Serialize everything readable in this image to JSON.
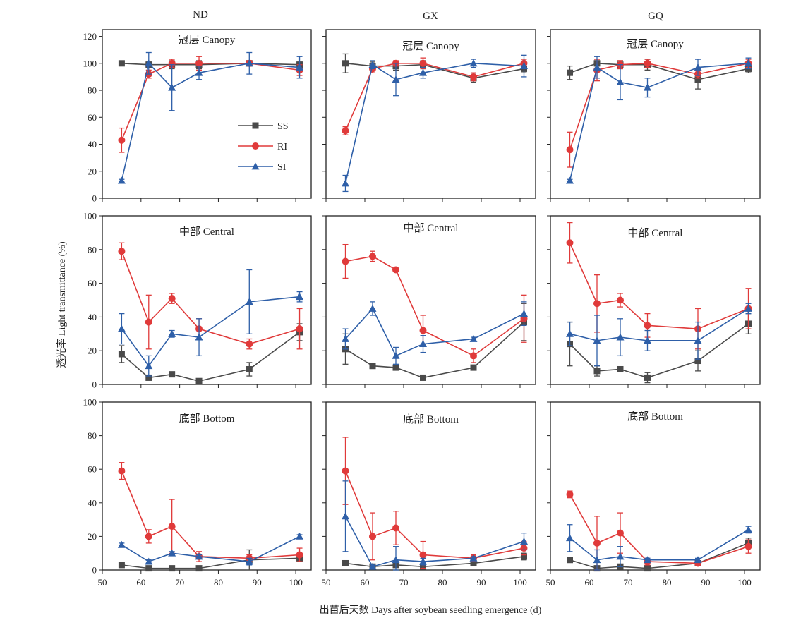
{
  "figure": {
    "xlabel": "出苗后天数 Days after soybean seedling emergence (d)",
    "ylabel": "透光率 Light transmittance (%)",
    "columns": [
      "ND",
      "GX",
      "GQ"
    ],
    "rows": [
      "冠层 Canopy",
      "中部 Central",
      "底部 Bottom"
    ],
    "x_ticks": [
      50,
      60,
      70,
      80,
      90,
      100
    ],
    "xlim": [
      50,
      104
    ],
    "row_ylims": [
      [
        0,
        125
      ],
      [
        0,
        100
      ],
      [
        0,
        100
      ]
    ],
    "row_yticks": [
      [
        0,
        20,
        40,
        60,
        80,
        100,
        120
      ],
      [
        0,
        20,
        40,
        60,
        80,
        100
      ],
      [
        0,
        20,
        40,
        60,
        80,
        100
      ]
    ],
    "legend": {
      "placement": "inside top-left panel, right of center",
      "items": [
        "SS",
        "RI",
        "SI"
      ]
    },
    "colors": {
      "SS": "#4a4a4a",
      "RI": "#e03a3a",
      "SI": "#2e5fa8"
    }
  },
  "chart_data": [
    {
      "type": "line",
      "column": "ND",
      "row": "冠层 Canopy",
      "title": "冠层 Canopy",
      "x": [
        55,
        62,
        68,
        75,
        88,
        101
      ],
      "series": [
        {
          "name": "SS",
          "values": [
            100,
            99,
            99,
            99,
            100,
            99
          ],
          "errors": [
            1,
            2,
            3,
            3,
            2,
            2
          ]
        },
        {
          "name": "RI",
          "values": [
            43,
            92,
            100,
            100,
            100,
            95
          ],
          "errors": [
            9,
            3,
            3,
            5,
            2,
            4
          ]
        },
        {
          "name": "SI",
          "values": [
            13,
            100,
            82,
            93,
            100,
            97
          ],
          "errors": [
            1,
            8,
            17,
            5,
            8,
            8
          ]
        }
      ]
    },
    {
      "type": "line",
      "column": "GX",
      "row": "冠层 Canopy",
      "title": "冠层 Canopy",
      "x": [
        55,
        62,
        68,
        75,
        88,
        101
      ],
      "series": [
        {
          "name": "SS",
          "values": [
            100,
            98,
            98,
            99,
            89,
            96
          ],
          "errors": [
            7,
            3,
            3,
            3,
            3,
            3
          ]
        },
        {
          "name": "RI",
          "values": [
            50,
            96,
            100,
            100,
            90,
            100
          ],
          "errors": [
            3,
            3,
            2,
            4,
            3,
            3
          ]
        },
        {
          "name": "SI",
          "values": [
            11,
            99,
            88,
            93,
            100,
            98
          ],
          "errors": [
            6,
            3,
            12,
            4,
            3,
            8
          ]
        }
      ]
    },
    {
      "type": "line",
      "column": "GQ",
      "row": "冠层 Canopy",
      "title": "冠层 Canopy",
      "x": [
        55,
        62,
        68,
        75,
        88,
        101
      ],
      "series": [
        {
          "name": "SS",
          "values": [
            93,
            100,
            99,
            99,
            88,
            96
          ],
          "errors": [
            5,
            2,
            3,
            4,
            7,
            3
          ]
        },
        {
          "name": "RI",
          "values": [
            36,
            95,
            99,
            100,
            92,
            100
          ],
          "errors": [
            13,
            8,
            3,
            3,
            3,
            3
          ]
        },
        {
          "name": "SI",
          "values": [
            13,
            97,
            86,
            82,
            97,
            100
          ],
          "errors": [
            1,
            8,
            13,
            7,
            6,
            4
          ]
        }
      ]
    },
    {
      "type": "line",
      "column": "ND",
      "row": "中部 Central",
      "title": "中部 Central",
      "x": [
        55,
        62,
        68,
        75,
        88,
        101
      ],
      "series": [
        {
          "name": "SS",
          "values": [
            18,
            4,
            6,
            2,
            9,
            31
          ],
          "errors": [
            5,
            1,
            1,
            1,
            4,
            5
          ]
        },
        {
          "name": "RI",
          "values": [
            79,
            37,
            51,
            33,
            24,
            33
          ],
          "errors": [
            5,
            16,
            3,
            6,
            3,
            12
          ]
        },
        {
          "name": "SI",
          "values": [
            33,
            11,
            30,
            28,
            49,
            52
          ],
          "errors": [
            9,
            6,
            2,
            11,
            19,
            3
          ]
        }
      ]
    },
    {
      "type": "line",
      "column": "GX",
      "row": "中部 Central",
      "title": "中部 Central",
      "x": [
        55,
        62,
        68,
        75,
        88,
        101
      ],
      "series": [
        {
          "name": "SS",
          "values": [
            21,
            11,
            10,
            4,
            10,
            37
          ],
          "errors": [
            9,
            1,
            1,
            1,
            1,
            11
          ]
        },
        {
          "name": "RI",
          "values": [
            73,
            76,
            68,
            32,
            17,
            39
          ],
          "errors": [
            10,
            3,
            1,
            9,
            4,
            14
          ]
        },
        {
          "name": "SI",
          "values": [
            27,
            45,
            17,
            24,
            27,
            42
          ],
          "errors": [
            6,
            4,
            5,
            5,
            1,
            7
          ]
        }
      ]
    },
    {
      "type": "line",
      "column": "GQ",
      "row": "中部 Central",
      "title": "中部 Central",
      "x": [
        55,
        62,
        68,
        75,
        88,
        101
      ],
      "series": [
        {
          "name": "SS",
          "values": [
            24,
            8,
            9,
            4,
            14,
            36
          ],
          "errors": [
            13,
            3,
            1,
            3,
            6,
            6
          ]
        },
        {
          "name": "RI",
          "values": [
            84,
            48,
            50,
            35,
            33,
            45
          ],
          "errors": [
            12,
            17,
            4,
            7,
            12,
            12
          ]
        },
        {
          "name": "SI",
          "values": [
            30,
            26,
            28,
            26,
            26,
            45
          ],
          "errors": [
            7,
            15,
            11,
            6,
            11,
            3
          ]
        }
      ]
    },
    {
      "type": "line",
      "column": "ND",
      "row": "底部 Bottom",
      "title": "底部 Bottom",
      "x": [
        55,
        62,
        68,
        75,
        88,
        101
      ],
      "series": [
        {
          "name": "SS",
          "values": [
            3,
            1,
            1,
            1,
            6,
            7
          ],
          "errors": [
            1,
            1,
            1,
            1,
            6,
            2
          ]
        },
        {
          "name": "RI",
          "values": [
            59,
            20,
            26,
            8,
            7,
            9
          ],
          "errors": [
            5,
            4,
            16,
            3,
            2,
            4
          ]
        },
        {
          "name": "SI",
          "values": [
            15,
            5,
            10,
            8,
            5,
            20
          ],
          "errors": [
            1,
            1,
            1,
            1,
            2,
            1
          ]
        }
      ]
    },
    {
      "type": "line",
      "column": "GX",
      "row": "底部 Bottom",
      "title": "底部 Bottom",
      "x": [
        55,
        62,
        68,
        75,
        88,
        101
      ],
      "series": [
        {
          "name": "SS",
          "values": [
            4,
            2,
            3,
            2,
            4,
            8
          ],
          "errors": [
            1,
            1,
            1,
            1,
            1,
            2
          ]
        },
        {
          "name": "RI",
          "values": [
            59,
            20,
            25,
            9,
            7,
            13
          ],
          "errors": [
            20,
            14,
            10,
            8,
            2,
            4
          ]
        },
        {
          "name": "SI",
          "values": [
            32,
            2,
            6,
            5,
            7,
            17
          ],
          "errors": [
            21,
            1,
            8,
            2,
            1,
            5
          ]
        }
      ]
    },
    {
      "type": "line",
      "column": "GQ",
      "row": "底部 Bottom",
      "title": "底部 Bottom",
      "x": [
        55,
        62,
        68,
        75,
        88,
        101
      ],
      "series": [
        {
          "name": "SS",
          "values": [
            6,
            1,
            2,
            1,
            4,
            16
          ],
          "errors": [
            1,
            1,
            1,
            1,
            1,
            3
          ]
        },
        {
          "name": "RI",
          "values": [
            45,
            16,
            22,
            5,
            4,
            14
          ],
          "errors": [
            2,
            16,
            12,
            2,
            1,
            4
          ]
        },
        {
          "name": "SI",
          "values": [
            19,
            6,
            8,
            6,
            6,
            24
          ],
          "errors": [
            8,
            6,
            6,
            1,
            1,
            2
          ]
        }
      ]
    }
  ]
}
